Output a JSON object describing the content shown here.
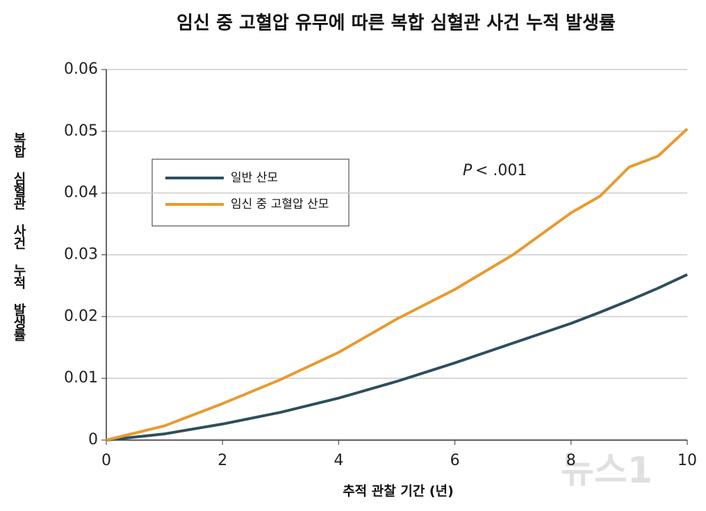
{
  "chart_data": {
    "type": "line",
    "title": "임신 중 고혈압 유무에 따른 복합 심혈관 사건 누적 발생률",
    "x_label": "추적 관찰 기간 (년)",
    "y_label": "복합 심혈관 사건 누적 발생률",
    "annotation": {
      "italic": "P",
      "text": "< .001"
    },
    "watermark": "뉴스1",
    "x": [
      0,
      1,
      2,
      3,
      4,
      5,
      6,
      7,
      8,
      8.5,
      9,
      9.5,
      10
    ],
    "series": [
      {
        "name": "일반 산모",
        "color": "#2e4f5c",
        "values": [
          0,
          0.001,
          0.0026,
          0.0045,
          0.0068,
          0.0095,
          0.0125,
          0.0157,
          0.0189,
          0.0207,
          0.0226,
          0.0246,
          0.0268
        ]
      },
      {
        "name": "임신 중 고혈압 산모",
        "color": "#e89a2e",
        "values": [
          0,
          0.0023,
          0.0059,
          0.0098,
          0.0142,
          0.0196,
          0.0244,
          0.03,
          0.0368,
          0.0395,
          0.0442,
          0.046,
          0.0504
        ]
      }
    ],
    "xlim": [
      0,
      10
    ],
    "xticks": [
      0,
      2,
      4,
      6,
      8,
      10
    ],
    "ylim": [
      0,
      0.06
    ],
    "yticks": [
      0,
      0.01,
      0.02,
      0.03,
      0.04,
      0.05,
      0.06
    ],
    "grid": true
  }
}
